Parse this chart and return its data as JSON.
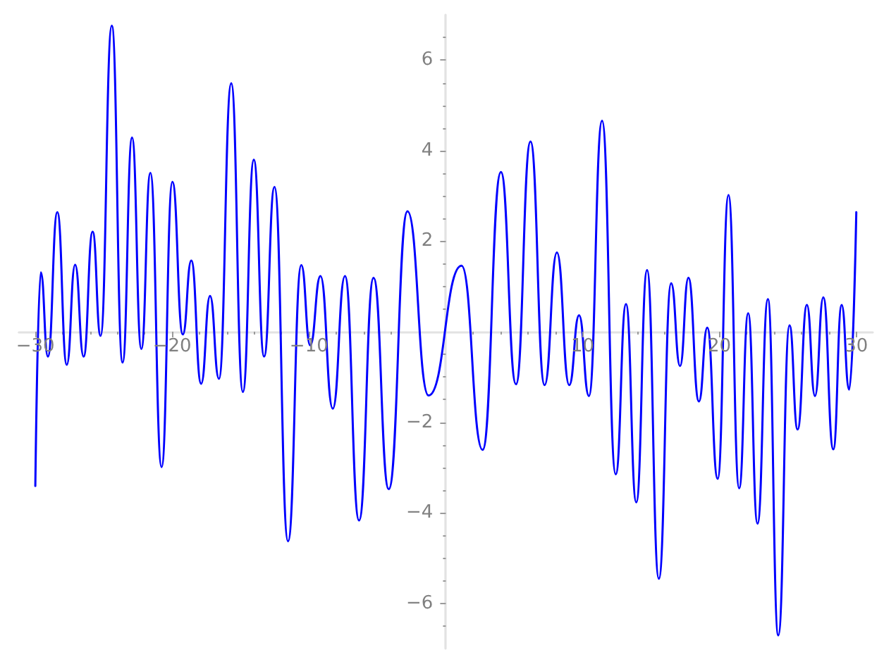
{
  "chart_data": {
    "type": "line",
    "color": "#0000ff",
    "marker": "none",
    "line_style": "solid",
    "grid": false,
    "x": [
      -30,
      -29.6,
      -29.08,
      -28.39,
      -27.7,
      -27.09,
      -26.47,
      -25.81,
      -25.23,
      -24.41,
      -23.62,
      -22.93,
      -22.25,
      -21.59,
      -20.77,
      -19.98,
      -19.22,
      -18.6,
      -17.88,
      -17.23,
      -16.58,
      -15.68,
      -14.83,
      -14.03,
      -13.28,
      -12.52,
      -11.53,
      -10.56,
      -9.91,
      -9.16,
      -8.26,
      -7.37,
      -6.34,
      -5.28,
      -4.17,
      -2.8,
      -1.26,
      1.15,
      2.69,
      4.03,
      5.13,
      6.19,
      7.22,
      8.12,
      9.02,
      9.74,
      10.46,
      11.42,
      12.42,
      13.17,
      13.92,
      14.71,
      15.57,
      16.47,
      17.12,
      17.73,
      18.5,
      19.11,
      19.87,
      20.66,
      21.44,
      22.1,
      22.78,
      23.54,
      24.3,
      25.12,
      25.71,
      26.39,
      26.98,
      27.59,
      28.32,
      28.93,
      29.48,
      30
    ],
    "values": [
      -3.41,
      1.31,
      -0.55,
      2.64,
      -0.73,
      1.48,
      -0.55,
      2.21,
      -0.09,
      6.76,
      -0.68,
      4.29,
      -0.38,
      3.51,
      -2.99,
      3.31,
      -0.06,
      1.57,
      -1.15,
      0.79,
      -1.04,
      5.49,
      -1.33,
      3.8,
      -0.55,
      3.2,
      -4.63,
      1.47,
      -0.3,
      1.23,
      -1.7,
      1.23,
      -4.17,
      1.19,
      -3.48,
      2.66,
      -1.41,
      1.46,
      -2.61,
      3.53,
      -1.16,
      4.2,
      -1.18,
      1.75,
      -1.18,
      0.36,
      -1.42,
      4.66,
      -3.15,
      0.61,
      -3.77,
      1.36,
      -5.46,
      1.07,
      -0.76,
      1.19,
      -1.54,
      0.09,
      -3.25,
      3.02,
      -3.46,
      0.41,
      -4.24,
      0.72,
      -6.71,
      0.14,
      -2.16,
      0.59,
      -1.42,
      0.76,
      -2.6,
      0.59,
      -1.28,
      2.64
    ],
    "xlim": [
      -31.2,
      31.2
    ],
    "ylim": [
      -7,
      7
    ],
    "xticks": [
      {
        "value": -30,
        "label": "−30"
      },
      {
        "value": -28,
        "label": null
      },
      {
        "value": -26,
        "label": null
      },
      {
        "value": -24,
        "label": null
      },
      {
        "value": -22,
        "label": null
      },
      {
        "value": -20,
        "label": "−20"
      },
      {
        "value": -18,
        "label": null
      },
      {
        "value": -16,
        "label": null
      },
      {
        "value": -14,
        "label": null
      },
      {
        "value": -12,
        "label": null
      },
      {
        "value": -10,
        "label": "−10"
      },
      {
        "value": -8,
        "label": null
      },
      {
        "value": -6,
        "label": null
      },
      {
        "value": -4,
        "label": null
      },
      {
        "value": -2,
        "label": null
      },
      {
        "value": 2,
        "label": null
      },
      {
        "value": 4,
        "label": null
      },
      {
        "value": 6,
        "label": null
      },
      {
        "value": 8,
        "label": null
      },
      10,
      {
        "value": 12,
        "label": null
      },
      {
        "value": 14,
        "label": null
      },
      {
        "value": 16,
        "label": null
      },
      {
        "value": 18,
        "label": null
      },
      20,
      {
        "value": 22,
        "label": null
      },
      {
        "value": 24,
        "label": null
      },
      {
        "value": 26,
        "label": null
      },
      {
        "value": 28,
        "label": null
      },
      30
    ],
    "yticks": [
      {
        "value": -6.5,
        "label": null
      },
      {
        "value": -6,
        "label": "−6"
      },
      {
        "value": -5.5,
        "label": null
      },
      {
        "value": -5,
        "label": null
      },
      {
        "value": -4.5,
        "label": null
      },
      {
        "value": -4,
        "label": "−4"
      },
      {
        "value": -3.5,
        "label": null
      },
      {
        "value": -3,
        "label": null
      },
      {
        "value": -2.5,
        "label": null
      },
      {
        "value": -2,
        "label": "−2"
      },
      {
        "value": -1.5,
        "label": null
      },
      {
        "value": -1,
        "label": null
      },
      {
        "value": -0.5,
        "label": null
      },
      {
        "value": 0.5,
        "label": null
      },
      {
        "value": 1,
        "label": null
      },
      {
        "value": 1.5,
        "label": null
      },
      2,
      {
        "value": 2.5,
        "label": null
      },
      {
        "value": 3,
        "label": null
      },
      {
        "value": 3.5,
        "label": null
      },
      4,
      {
        "value": 4.5,
        "label": null
      },
      {
        "value": 5,
        "label": null
      },
      {
        "value": 5.5,
        "label": null
      },
      6,
      {
        "value": 6.5,
        "label": null
      }
    ]
  }
}
